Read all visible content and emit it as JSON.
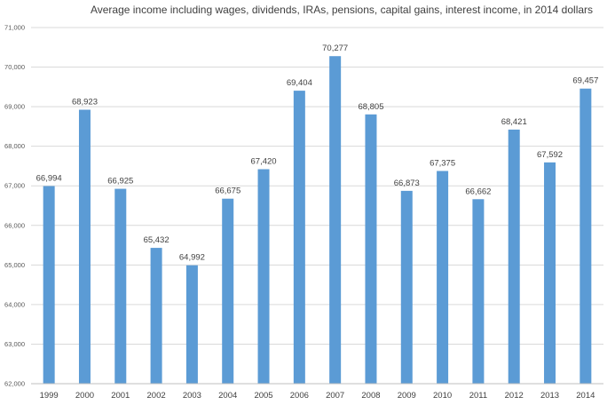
{
  "chart_data": {
    "type": "bar",
    "title": "Average income including wages, dividends, IRAs, pensions, capital gains, interest income, in 2014 dollars",
    "xlabel": "",
    "ylabel": "",
    "categories": [
      "1999",
      "2000",
      "2001",
      "2002",
      "2003",
      "2004",
      "2005",
      "2006",
      "2007",
      "2008",
      "2009",
      "2010",
      "2011",
      "2012",
      "2013",
      "2014"
    ],
    "values": [
      66994,
      68923,
      66925,
      65432,
      64992,
      66675,
      67420,
      69404,
      70277,
      68805,
      66873,
      67375,
      66662,
      68421,
      67592,
      69457
    ],
    "value_labels": [
      "66,994",
      "68,923",
      "66,925",
      "65,432",
      "64,992",
      "66,675",
      "67,420",
      "69,404",
      "70,277",
      "68,805",
      "66,873",
      "67,375",
      "66,662",
      "68,421",
      "67,592",
      "69,457"
    ],
    "ylim": [
      62000,
      71000
    ],
    "yticks": [
      62000,
      63000,
      64000,
      65000,
      66000,
      67000,
      68000,
      69000,
      70000,
      71000
    ],
    "ytick_labels": [
      "62,000",
      "63,000",
      "64,000",
      "65,000",
      "66,000",
      "67,000",
      "68,000",
      "69,000",
      "70,000",
      "71,000"
    ],
    "grid": true,
    "legend": "none",
    "colors": {
      "bar": "#5b9bd5",
      "grid": "#d9d9d9",
      "text": "#404040"
    }
  }
}
